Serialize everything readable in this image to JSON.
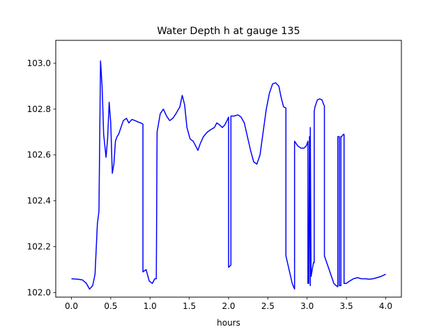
{
  "chart_data": {
    "type": "line",
    "title": "Water Depth h at gauge 135",
    "xlabel": "hours",
    "ylabel": "",
    "xlim": [
      -0.2,
      4.2
    ],
    "ylim": [
      101.98,
      103.1
    ],
    "xticks": [
      0.0,
      0.5,
      1.0,
      1.5,
      2.0,
      2.5,
      3.0,
      3.5,
      4.0
    ],
    "xtick_labels": [
      "0.0",
      "0.5",
      "1.0",
      "1.5",
      "2.0",
      "2.5",
      "3.0",
      "3.5",
      "4.0"
    ],
    "yticks": [
      102.0,
      102.2,
      102.4,
      102.6,
      102.8,
      103.0
    ],
    "ytick_labels": [
      "102.0",
      "102.2",
      "102.4",
      "102.6",
      "102.8",
      "103.0"
    ],
    "grid": false,
    "legend": "none",
    "series": [
      {
        "color": "#0000ff",
        "x": [
          0.0,
          0.08,
          0.14,
          0.19,
          0.23,
          0.27,
          0.3,
          0.33,
          0.35,
          0.37,
          0.37,
          0.39,
          0.41,
          0.44,
          0.46,
          0.48,
          0.5,
          0.52,
          0.54,
          0.56,
          0.58,
          0.6,
          0.63,
          0.66,
          0.7,
          0.73,
          0.77,
          0.81,
          0.84,
          0.88,
          0.91,
          0.91,
          0.95,
          0.99,
          1.03,
          1.06,
          1.08,
          1.09,
          1.11,
          1.13,
          1.17,
          1.21,
          1.25,
          1.29,
          1.33,
          1.38,
          1.41,
          1.44,
          1.47,
          1.51,
          1.55,
          1.58,
          1.61,
          1.64,
          1.68,
          1.73,
          1.77,
          1.82,
          1.85,
          1.89,
          1.92,
          1.95,
          1.98,
          2.0,
          2.0,
          2.03,
          2.03,
          2.07,
          2.12,
          2.16,
          2.2,
          2.24,
          2.28,
          2.32,
          2.36,
          2.4,
          2.44,
          2.48,
          2.52,
          2.56,
          2.6,
          2.64,
          2.67,
          2.7,
          2.73,
          2.73,
          2.77,
          2.81,
          2.84,
          2.84,
          2.88,
          2.92,
          2.96,
          2.99,
          3.01,
          3.01,
          3.02,
          3.03,
          3.04,
          3.04,
          3.05,
          3.06,
          3.07,
          3.08,
          3.09,
          3.09,
          3.1,
          3.13,
          3.16,
          3.19,
          3.21,
          3.22,
          3.22,
          3.26,
          3.3,
          3.34,
          3.37,
          3.39,
          3.39,
          3.41,
          3.41,
          3.43,
          3.43,
          3.44,
          3.46,
          3.47,
          3.47,
          3.5,
          3.54,
          3.59,
          3.64,
          3.69,
          3.74,
          3.79,
          3.84,
          3.89,
          3.94,
          3.97,
          4.0
        ],
        "y": [
          102.06,
          102.058,
          102.055,
          102.04,
          102.015,
          102.03,
          102.08,
          102.3,
          102.355,
          103.01,
          103.01,
          102.9,
          102.69,
          102.59,
          102.67,
          102.83,
          102.74,
          102.52,
          102.56,
          102.66,
          102.68,
          102.69,
          102.72,
          102.75,
          102.76,
          102.74,
          102.755,
          102.75,
          102.745,
          102.74,
          102.735,
          102.09,
          102.1,
          102.05,
          102.04,
          102.06,
          102.06,
          102.7,
          102.74,
          102.78,
          102.8,
          102.77,
          102.75,
          102.76,
          102.78,
          102.81,
          102.86,
          102.82,
          102.72,
          102.67,
          102.66,
          102.64,
          102.62,
          102.65,
          102.68,
          102.7,
          102.71,
          102.72,
          102.74,
          102.73,
          102.72,
          102.73,
          102.75,
          102.765,
          102.11,
          102.12,
          102.77,
          102.77,
          102.775,
          102.765,
          102.74,
          102.68,
          102.62,
          102.57,
          102.56,
          102.6,
          102.7,
          102.8,
          102.87,
          102.91,
          102.915,
          102.9,
          102.85,
          102.81,
          102.805,
          102.16,
          102.1,
          102.04,
          102.015,
          102.66,
          102.64,
          102.63,
          102.63,
          102.64,
          102.66,
          102.04,
          102.04,
          102.68,
          102.03,
          102.72,
          102.07,
          102.09,
          102.11,
          102.13,
          102.13,
          102.79,
          102.81,
          102.84,
          102.845,
          102.84,
          102.82,
          102.815,
          102.16,
          102.12,
          102.08,
          102.04,
          102.03,
          102.025,
          102.68,
          102.68,
          102.03,
          102.03,
          102.68,
          102.68,
          102.69,
          102.69,
          102.04,
          102.04,
          102.05,
          102.06,
          102.065,
          102.06,
          102.06,
          102.058,
          102.06,
          102.065,
          102.07,
          102.075,
          102.08
        ]
      }
    ]
  }
}
